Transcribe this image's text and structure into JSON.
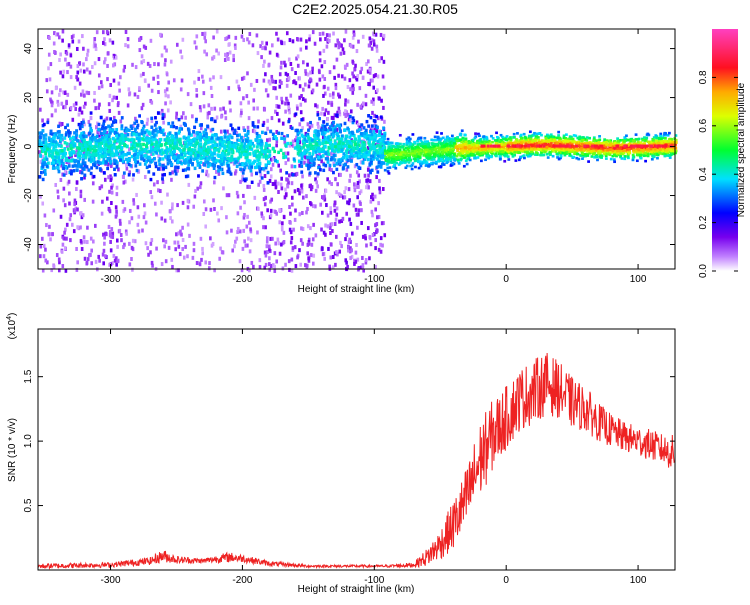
{
  "page": {
    "title": "C2E2.2025.054.21.30.R05"
  },
  "colors": {
    "snr_line": "#ee2222",
    "axis": "#000000",
    "background": "#ffffff"
  },
  "chart_data": [
    {
      "type": "heatmap",
      "title": "C2E2.2025.054.21.30.R05",
      "xlabel": "Height of straight line (km)",
      "ylabel": "Frequency (Hz)",
      "xlim": [
        -355,
        128
      ],
      "ylim": [
        -50,
        48
      ],
      "xticks": [
        -300,
        -200,
        -100,
        0,
        100
      ],
      "yticks": [
        -40,
        -20,
        0,
        20,
        40
      ],
      "grid": false,
      "colorbar": {
        "label": "Normalized spectral amplitude",
        "range": [
          0.0,
          1.0
        ],
        "ticks": [
          0.0,
          0.2,
          0.4,
          0.6,
          0.8
        ],
        "colormap": "rainbow (white-purple-blue-cyan-green-yellow-red-magenta)"
      },
      "series": [
        {
          "description_points": [
            {
              "x_range": [
                -355,
                -93
              ],
              "center_freq": 0,
              "band_halfwidth": 7,
              "typical_amplitude": 0.3
            },
            {
              "x_range": [
                -355,
                -93
              ],
              "scatter_freq_range": [
                -50,
                48
              ],
              "typical_amplitude": 0.05
            },
            {
              "x_range": [
                -93,
                128
              ],
              "center_freq": 0,
              "band_halfwidth": 3,
              "typical_amplitude": 0.6
            },
            {
              "x_range": [
                -20,
                128
              ],
              "center_freq": 0.5,
              "band_halfwidth": 1,
              "typical_amplitude": 0.9
            }
          ]
        }
      ]
    },
    {
      "type": "line",
      "xlabel": "Height of straight line (km)",
      "ylabel": "SNR (10 * v/v)",
      "y_multiplier_label": "(x10",
      "y_multiplier_exp": "4",
      "y_multiplier_close": ")",
      "xlim": [
        -355,
        128
      ],
      "ylim": [
        0.0,
        1.87
      ],
      "xticks": [
        -300,
        -200,
        -100,
        0,
        100
      ],
      "yticks": [
        0.5,
        1.0,
        1.5
      ],
      "ytick_labels": [
        "0.5",
        "1.0",
        "1.5"
      ],
      "grid": false,
      "series": [
        {
          "envelope_x": [
            -355,
            -300,
            -270,
            -260,
            -250,
            -230,
            -210,
            -200,
            -180,
            -150,
            -120,
            -90,
            -70,
            -60,
            -50,
            -40,
            -30,
            -20,
            -10,
            0,
            10,
            20,
            30,
            40,
            50,
            60,
            70,
            80,
            90,
            100,
            110,
            120,
            128
          ],
          "envelope_mid": [
            0.03,
            0.04,
            0.07,
            0.11,
            0.08,
            0.07,
            0.1,
            0.09,
            0.05,
            0.03,
            0.03,
            0.03,
            0.04,
            0.1,
            0.2,
            0.35,
            0.55,
            0.85,
            1.05,
            1.18,
            1.32,
            1.38,
            1.45,
            1.4,
            1.3,
            1.25,
            1.15,
            1.08,
            1.03,
            1.0,
            0.97,
            0.93,
            0.9
          ],
          "envelope_amp": [
            0.02,
            0.02,
            0.03,
            0.05,
            0.03,
            0.02,
            0.04,
            0.03,
            0.02,
            0.01,
            0.01,
            0.01,
            0.02,
            0.07,
            0.12,
            0.2,
            0.25,
            0.3,
            0.28,
            0.25,
            0.25,
            0.25,
            0.25,
            0.22,
            0.2,
            0.18,
            0.15,
            0.13,
            0.12,
            0.12,
            0.12,
            0.12,
            0.15
          ]
        }
      ]
    }
  ]
}
